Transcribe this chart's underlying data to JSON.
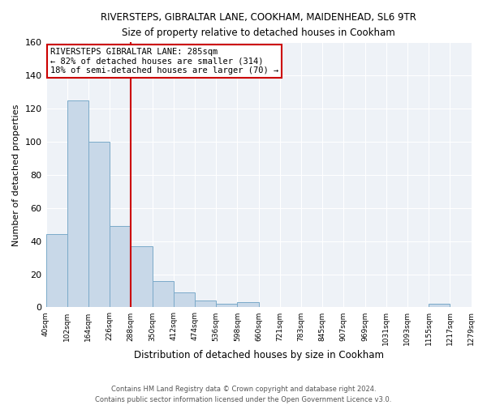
{
  "title1": "RIVERSTEPS, GIBRALTAR LANE, COOKHAM, MAIDENHEAD, SL6 9TR",
  "title2": "Size of property relative to detached houses in Cookham",
  "xlabel": "Distribution of detached houses by size in Cookham",
  "ylabel": "Number of detached properties",
  "bar_values": [
    44,
    125,
    100,
    49,
    37,
    16,
    9,
    4,
    2,
    3,
    0,
    0,
    0,
    0,
    0,
    0,
    0,
    0,
    2,
    0
  ],
  "bin_labels": [
    "40sqm",
    "102sqm",
    "164sqm",
    "226sqm",
    "288sqm",
    "350sqm",
    "412sqm",
    "474sqm",
    "536sqm",
    "598sqm",
    "660sqm",
    "721sqm",
    "783sqm",
    "845sqm",
    "907sqm",
    "969sqm",
    "1031sqm",
    "1093sqm",
    "1155sqm",
    "1217sqm",
    "1279sqm"
  ],
  "bar_color": "#c8d8e8",
  "bar_edge_color": "#7baac9",
  "reference_line_x": 4,
  "reference_line_color": "#cc0000",
  "annotation_title": "RIVERSTEPS GIBRALTAR LANE: 285sqm",
  "annotation_line1": "← 82% of detached houses are smaller (314)",
  "annotation_line2": "18% of semi-detached houses are larger (70) →",
  "annotation_box_edge_color": "#cc0000",
  "ylim": [
    0,
    160
  ],
  "yticks": [
    0,
    20,
    40,
    60,
    80,
    100,
    120,
    140,
    160
  ],
  "footer1": "Contains HM Land Registry data © Crown copyright and database right 2024.",
  "footer2": "Contains public sector information licensed under the Open Government Licence v3.0.",
  "bg_color": "#eef2f7"
}
